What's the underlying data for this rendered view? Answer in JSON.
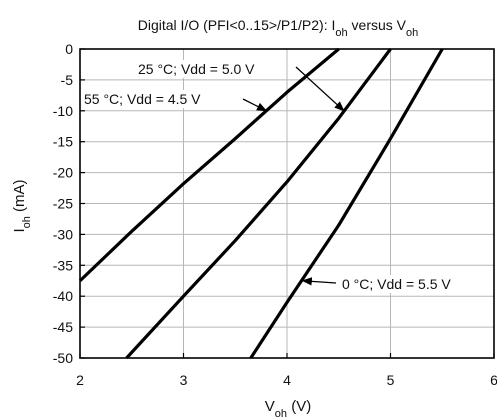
{
  "chart_data": {
    "type": "line",
    "title": "Digital I/O (PFI<0..15>/P1/P2): I",
    "title_sub_main": "oh",
    "title_mid": " versus V",
    "title_sub_secondary": "oh",
    "xlabel": "V",
    "xlabel_sub": "oh",
    "xlabel_unit": " (V)",
    "ylabel": "I",
    "ylabel_sub": "oh",
    "ylabel_unit": " (mA)",
    "xlim": [
      2,
      6
    ],
    "ylim": [
      -50,
      0
    ],
    "x_ticks": [
      2,
      3,
      4,
      5,
      6
    ],
    "y_ticks": [
      0,
      -5,
      -10,
      -15,
      -20,
      -25,
      -30,
      -35,
      -40,
      -45,
      -50
    ],
    "grid": true,
    "series": [
      {
        "name": "55 °C; Vdd = 4.5 V",
        "x": [
          2.0,
          2.5,
          3.0,
          3.5,
          4.0,
          4.5
        ],
        "values": [
          -37.5,
          -29.5,
          -21.8,
          -14.5,
          -7.0,
          0.0
        ]
      },
      {
        "name": "25 °C; Vdd = 5.0 V",
        "x": [
          2.45,
          3.0,
          3.5,
          4.0,
          4.5,
          5.0
        ],
        "values": [
          -50.0,
          -40.0,
          -31.0,
          -21.5,
          -11.2,
          0.0
        ]
      },
      {
        "name": "0 °C; Vdd = 5.5 V",
        "x": [
          3.65,
          4.0,
          4.5,
          5.0,
          5.5
        ],
        "values": [
          -50.0,
          -41.0,
          -28.5,
          -14.5,
          0.0
        ]
      }
    ],
    "annotations": [
      {
        "text": "25 °C; Vdd = 5.0 V",
        "series_index": 1,
        "arrow_target_x": 4.55,
        "arrow_target_y": -10.0
      },
      {
        "text": "55 °C; Vdd = 4.5 V",
        "series_index": 0,
        "arrow_target_x": 3.8,
        "arrow_target_y": -10.0
      },
      {
        "text": "0 °C; Vdd = 5.5 V",
        "series_index": 2,
        "arrow_target_x": 4.15,
        "arrow_target_y": -37.5
      }
    ],
    "colors": {
      "line": "#000000",
      "grid": "#b7b7b7",
      "frame": "#000000",
      "background": "#ffffff"
    }
  }
}
